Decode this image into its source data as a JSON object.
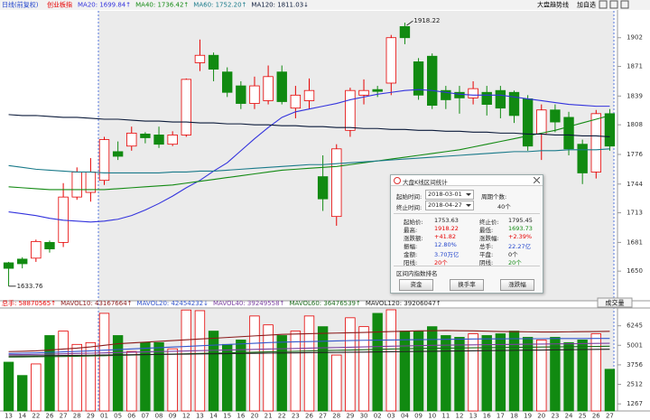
{
  "header": {
    "period": "日线(前复权)",
    "index": "创业板指",
    "buttons": [
      "大盘趋势线",
      "加自选"
    ],
    "volume_tab": "成交量"
  },
  "chart_data": {
    "type": "candlestick",
    "categories": [
      "13",
      "14",
      "22",
      "26",
      "27",
      "28",
      "29",
      "01",
      "05",
      "06",
      "07",
      "08",
      "09",
      "12",
      "13",
      "14",
      "15",
      "16",
      "20",
      "21",
      "22",
      "23",
      "26",
      "27",
      "28",
      "29",
      "30",
      "02",
      "03",
      "04",
      "09",
      "10",
      "11",
      "12",
      "13",
      "16",
      "17",
      "18",
      "19",
      "20",
      "23",
      "24",
      "25",
      "26",
      "27"
    ],
    "open": [
      1659,
      1663,
      1664,
      1681,
      1681,
      1730,
      1735,
      1748,
      1779,
      1785,
      1798,
      1797,
      1787,
      1797,
      1875,
      1883,
      1865,
      1850,
      1831,
      1834,
      1865,
      1826,
      1834,
      1752,
      1709,
      1802,
      1840,
      1846,
      1853,
      1914,
      1876,
      1882,
      1845,
      1843,
      1837,
      1843,
      1845,
      1843,
      1836,
      1798,
      1824,
      1816,
      1787,
      1757,
      1820
    ],
    "high": [
      1660,
      1665,
      1684,
      1683,
      1745,
      1762,
      1772,
      1795,
      1790,
      1806,
      1800,
      1806,
      1801,
      1858,
      1900,
      1886,
      1870,
      1855,
      1860,
      1872,
      1872,
      1850,
      1858,
      1775,
      1787,
      1848,
      1857,
      1850,
      1905,
      1918.22,
      1880,
      1885,
      1850,
      1850,
      1855,
      1850,
      1850,
      1845,
      1840,
      1830,
      1830,
      1822,
      1792,
      1824,
      1825
    ],
    "low": [
      1633.76,
      1653,
      1660,
      1670,
      1676,
      1727,
      1725,
      1743,
      1770,
      1780,
      1788,
      1783,
      1785,
      1795,
      1866,
      1855,
      1838,
      1825,
      1825,
      1830,
      1830,
      1815,
      1825,
      1715,
      1699,
      1795,
      1830,
      1838,
      1840,
      1895,
      1835,
      1825,
      1825,
      1820,
      1830,
      1818,
      1815,
      1810,
      1780,
      1770,
      1800,
      1775,
      1744,
      1750,
      1780
    ],
    "close": [
      1653,
      1658,
      1682,
      1674,
      1730,
      1757,
      1757,
      1792,
      1774,
      1799,
      1794,
      1787,
      1797,
      1857,
      1883,
      1868,
      1843,
      1831,
      1850,
      1860,
      1833,
      1840,
      1845,
      1728,
      1782,
      1845,
      1845,
      1844,
      1902,
      1902,
      1840,
      1829,
      1835,
      1837,
      1847,
      1830,
      1826,
      1818,
      1785,
      1824,
      1811,
      1782,
      1756,
      1820,
      1785
    ],
    "up_color": "#e60000",
    "down_color": "#118a11",
    "ylim": [
      1618,
      1931
    ],
    "yticks": [
      1650,
      1681,
      1713,
      1744,
      1776,
      1808,
      1839,
      1871,
      1902
    ],
    "ma_series": [
      {
        "name": "MA20: 1699.84↑",
        "color": "#3333dd",
        "values": [
          1714,
          1712,
          1710,
          1707,
          1705,
          1704,
          1703,
          1704,
          1706,
          1710,
          1716,
          1723,
          1731,
          1740,
          1748,
          1758,
          1767,
          1780,
          1793,
          1805,
          1816,
          1822,
          1825,
          1828,
          1831,
          1835,
          1838,
          1841,
          1843,
          1845,
          1846,
          1845,
          1843,
          1841,
          1840,
          1840,
          1840,
          1838,
          1836,
          1834,
          1832,
          1830,
          1829,
          1828,
          1828
        ]
      },
      {
        "name": "MA40: 1736.42↑",
        "color": "#138a13",
        "values": [
          1741,
          1740,
          1739,
          1738,
          1738,
          1738,
          1738,
          1738,
          1739,
          1740,
          1741,
          1742,
          1743,
          1745,
          1747,
          1749,
          1751,
          1753,
          1755,
          1757,
          1759,
          1760,
          1761,
          1762,
          1763,
          1765,
          1767,
          1769,
          1771,
          1773,
          1775,
          1777,
          1779,
          1781,
          1784,
          1787,
          1790,
          1793,
          1796,
          1799,
          1802,
          1806,
          1810,
          1814,
          1818
        ]
      },
      {
        "name": "MA60: 1752.20↑",
        "color": "#1a7a8a",
        "values": [
          1764,
          1762,
          1760,
          1759,
          1758,
          1757,
          1757,
          1756,
          1756,
          1756,
          1756,
          1756,
          1757,
          1757,
          1758,
          1758,
          1759,
          1760,
          1761,
          1762,
          1763,
          1764,
          1765,
          1765,
          1766,
          1767,
          1768,
          1769,
          1770,
          1771,
          1772,
          1773,
          1774,
          1775,
          1776,
          1777,
          1778,
          1779,
          1779,
          1780,
          1780,
          1781,
          1781,
          1781,
          1782
        ]
      },
      {
        "name": "MA120: 1811.03↓",
        "color": "#0b1a3a",
        "values": [
          1819,
          1818,
          1818,
          1817,
          1816,
          1816,
          1815,
          1814,
          1814,
          1813,
          1812,
          1812,
          1811,
          1811,
          1810,
          1810,
          1809,
          1809,
          1808,
          1808,
          1807,
          1807,
          1806,
          1806,
          1805,
          1805,
          1804,
          1804,
          1803,
          1803,
          1802,
          1802,
          1801,
          1801,
          1800,
          1800,
          1799,
          1799,
          1798,
          1798,
          1797,
          1797,
          1796,
          1796,
          1795
        ]
      }
    ],
    "volume": {
      "total": "总手: 58870565↑",
      "values": [
        3926,
        3078,
        3813,
        5623,
        5906,
        5058,
        5171,
        7037,
        5623,
        4605,
        5171,
        5171,
        4775,
        7250,
        7207,
        5906,
        5058,
        5340,
        6868,
        6302,
        5623,
        5906,
        6868,
        6189,
        4379,
        6754,
        6189,
        7037,
        7263,
        5906,
        5906,
        6189,
        5623,
        5510,
        5736,
        5623,
        5736,
        5906,
        5510,
        5340,
        5510,
        5171,
        5340,
        5736,
        3474
      ],
      "ylim": [
        816,
        7320
      ],
      "yticks": [
        1267,
        2512,
        3756,
        5001,
        6245
      ],
      "series": [
        {
          "name": "MAVOL10: 43167664↑",
          "color": "#8b1a1a",
          "values": [
            4600,
            4620,
            4650,
            4700,
            4760,
            4820,
            4900,
            5000,
            5100,
            5150,
            5200,
            5250,
            5300,
            5350,
            5400,
            5450,
            5500,
            5550,
            5600,
            5650,
            5700,
            5720,
            5740,
            5760,
            5780,
            5800,
            5820,
            5850,
            5880,
            5900,
            5920,
            5930,
            5940,
            5930,
            5920,
            5900,
            5880,
            5870,
            5860,
            5850,
            5850,
            5860,
            5870,
            5880,
            5890
          ]
        },
        {
          "name": "MAVOL20: 42454232↓",
          "color": "#3355cc",
          "values": [
            4480,
            4500,
            4520,
            4550,
            4580,
            4610,
            4650,
            4690,
            4730,
            4770,
            4810,
            4850,
            4890,
            4930,
            4970,
            5010,
            5050,
            5090,
            5130,
            5170,
            5200,
            5220,
            5240,
            5260,
            5280,
            5300,
            5320,
            5330,
            5340,
            5350,
            5360,
            5370,
            5380,
            5390,
            5400,
            5410,
            5410,
            5420,
            5420,
            5420,
            5430,
            5430,
            5430,
            5440,
            5440
          ]
        },
        {
          "name": "MAVOL40: 39249558↑",
          "color": "#7a3fa0",
          "values": [
            4400,
            4410,
            4420,
            4440,
            4460,
            4480,
            4500,
            4520,
            4540,
            4560,
            4580,
            4600,
            4620,
            4640,
            4660,
            4680,
            4700,
            4720,
            4740,
            4760,
            4780,
            4800,
            4820,
            4840,
            4860,
            4880,
            4900,
            4920,
            4940,
            4960,
            4980,
            5000,
            5010,
            5020,
            5030,
            5040,
            5050,
            5060,
            5070,
            5080,
            5090,
            5100,
            5110,
            5120,
            5130
          ]
        },
        {
          "name": "MAVOL60: 36476539↑",
          "color": "#1a6a1a",
          "values": [
            4250,
            4260,
            4270,
            4280,
            4290,
            4300,
            4320,
            4340,
            4360,
            4380,
            4400,
            4420,
            4440,
            4460,
            4480,
            4500,
            4520,
            4540,
            4560,
            4580,
            4600,
            4620,
            4640,
            4660,
            4680,
            4700,
            4720,
            4740,
            4760,
            4780,
            4800,
            4810,
            4820,
            4830,
            4840,
            4850,
            4860,
            4870,
            4880,
            4890,
            4900,
            4910,
            4920,
            4930,
            4940
          ]
        },
        {
          "name": "MAVOL120: 39206047↑",
          "color": "#222222",
          "values": [
            4320,
            4325,
            4330,
            4340,
            4350,
            4360,
            4370,
            4380,
            4390,
            4400,
            4410,
            4420,
            4430,
            4440,
            4450,
            4460,
            4470,
            4480,
            4490,
            4500,
            4510,
            4520,
            4530,
            4540,
            4550,
            4560,
            4570,
            4580,
            4590,
            4600,
            4610,
            4620,
            4630,
            4640,
            4650,
            4660,
            4670,
            4680,
            4690,
            4700,
            4710,
            4720,
            4730,
            4740,
            4750
          ]
        }
      ]
    }
  },
  "dialog": {
    "title": "大盘K线区间统计",
    "start_label": "起始时间:",
    "start_date": "2018-03-01",
    "end_label": "终止时间:",
    "end_date": "2018-04-27",
    "count_label": "周期个数:",
    "count": "40个",
    "stats": [
      [
        "起始价:",
        "1753.63",
        "终止价:",
        "1795.45"
      ],
      [
        "最高:",
        "1918.22",
        "最低:",
        "1693.73"
      ],
      [
        "涨跌额:",
        "+41.82",
        "涨跌幅:",
        "+2.39%"
      ],
      [
        "振幅:",
        "12.80%",
        "总手:",
        "22.27亿"
      ],
      [
        "金额:",
        "3.70万亿",
        "平盘:",
        "0个"
      ],
      [
        "阳线:",
        "20个",
        "阴线:",
        "20个"
      ]
    ],
    "ranking_title": "区间内指数排名",
    "buttons": [
      "资金",
      "换手率",
      "涨跌幅"
    ]
  }
}
